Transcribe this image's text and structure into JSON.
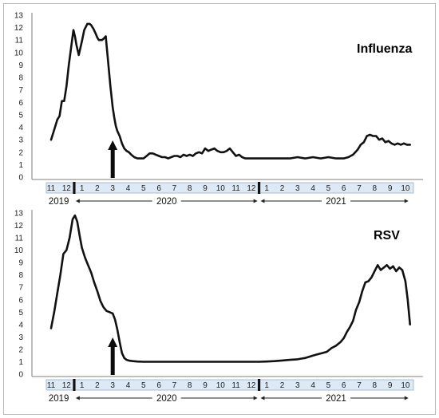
{
  "chart_data": [
    {
      "type": "line",
      "title": "Influenza",
      "xlabel": "",
      "ylabel": "",
      "ylim": [
        0,
        13
      ],
      "yticks": [
        0,
        1,
        2,
        3,
        4,
        5,
        6,
        7,
        8,
        9,
        10,
        11,
        12,
        13
      ],
      "month_ticks": [
        {
          "label": "11",
          "m": 0
        },
        {
          "label": "12",
          "m": 1
        },
        {
          "label": "1",
          "m": 2
        },
        {
          "label": "2",
          "m": 3
        },
        {
          "label": "3",
          "m": 4
        },
        {
          "label": "4",
          "m": 5
        },
        {
          "label": "5",
          "m": 6
        },
        {
          "label": "6",
          "m": 7
        },
        {
          "label": "7",
          "m": 8
        },
        {
          "label": "8",
          "m": 9
        },
        {
          "label": "9",
          "m": 10
        },
        {
          "label": "10",
          "m": 11
        },
        {
          "label": "11",
          "m": 12
        },
        {
          "label": "12",
          "m": 13
        },
        {
          "label": "1",
          "m": 14
        },
        {
          "label": "2",
          "m": 15
        },
        {
          "label": "3",
          "m": 16
        },
        {
          "label": "4",
          "m": 17
        },
        {
          "label": "5",
          "m": 18
        },
        {
          "label": "6",
          "m": 19
        },
        {
          "label": "7",
          "m": 20
        },
        {
          "label": "8",
          "m": 21
        },
        {
          "label": "9",
          "m": 22
        },
        {
          "label": "10",
          "m": 23
        }
      ],
      "year_labels": [
        {
          "label": "2019",
          "m": 0.5
        },
        {
          "label": "2020",
          "m": 7.5
        },
        {
          "label": "2021",
          "m": 18.5
        }
      ],
      "year_ranges": [
        {
          "year": "2020",
          "from": 1.6,
          "to": 13.4
        },
        {
          "year": "2021",
          "from": 13.6,
          "to": 23.2
        }
      ],
      "arrow_month": 4,
      "series": [
        {
          "x": [
            0,
            0.2,
            0.4,
            0.55,
            0.7,
            0.85,
            1.0,
            1.15,
            1.3,
            1.45,
            1.55,
            1.65,
            1.8,
            2.0,
            2.15,
            2.35,
            2.5,
            2.6,
            2.75,
            2.9,
            3.0,
            3.1,
            3.2,
            3.3,
            3.4,
            3.55,
            3.7,
            3.85,
            4.0,
            4.1,
            4.2,
            4.3,
            4.45,
            4.6,
            4.75,
            4.9,
            5.05,
            5.2,
            5.4,
            5.6,
            5.8,
            6.0,
            6.2,
            6.4,
            6.6,
            6.8,
            7.0,
            7.2,
            7.4,
            7.6,
            7.8,
            8.0,
            8.2,
            8.4,
            8.6,
            8.8,
            9.0,
            9.2,
            9.4,
            9.6,
            9.8,
            10.0,
            10.2,
            10.4,
            10.6,
            10.8,
            11.0,
            11.2,
            11.4,
            11.6,
            11.8,
            12.0,
            12.2,
            12.4,
            12.6,
            12.8,
            13.0,
            13.2,
            13.4,
            13.6,
            13.8,
            14.0,
            14.3,
            14.6,
            15.0,
            15.5,
            16.0,
            16.5,
            17.0,
            17.5,
            18.0,
            18.5,
            19.0,
            19.3,
            19.6,
            19.9,
            20.1,
            20.3,
            20.5,
            20.7,
            20.9,
            21.1,
            21.3,
            21.5,
            21.7,
            21.9,
            22.1,
            22.3,
            22.5,
            22.7,
            22.9,
            23.1,
            23.3
          ],
          "y": [
            3.0,
            3.8,
            4.6,
            4.9,
            6.1,
            6.1,
            7.3,
            9.0,
            10.4,
            11.8,
            11.3,
            10.6,
            9.8,
            10.9,
            11.8,
            12.3,
            12.3,
            12.2,
            11.9,
            11.5,
            11.2,
            11.0,
            11.0,
            11.0,
            11.1,
            11.3,
            9.3,
            7.3,
            5.6,
            4.8,
            4.1,
            3.7,
            3.3,
            2.7,
            2.3,
            2.1,
            2.0,
            1.8,
            1.6,
            1.5,
            1.5,
            1.5,
            1.7,
            1.9,
            1.9,
            1.8,
            1.7,
            1.6,
            1.6,
            1.5,
            1.6,
            1.7,
            1.7,
            1.6,
            1.8,
            1.7,
            1.8,
            1.7,
            1.9,
            2.0,
            1.9,
            2.3,
            2.1,
            2.2,
            2.3,
            2.1,
            2.0,
            2.0,
            2.1,
            2.3,
            2.0,
            1.7,
            1.8,
            1.6,
            1.5,
            1.5,
            1.5,
            1.5,
            1.5,
            1.5,
            1.5,
            1.5,
            1.5,
            1.5,
            1.5,
            1.5,
            1.6,
            1.5,
            1.6,
            1.5,
            1.6,
            1.5,
            1.5,
            1.6,
            1.8,
            2.2,
            2.6,
            2.8,
            3.3,
            3.4,
            3.3,
            3.3,
            3.0,
            3.1,
            2.8,
            2.9,
            2.7,
            2.6,
            2.7,
            2.6,
            2.7,
            2.6,
            2.6
          ]
        }
      ]
    },
    {
      "type": "line",
      "title": "RSV",
      "xlabel": "",
      "ylabel": "",
      "ylim": [
        0,
        13
      ],
      "yticks": [
        0,
        1,
        2,
        3,
        4,
        5,
        6,
        7,
        8,
        9,
        10,
        11,
        12,
        13
      ],
      "month_ticks": [
        {
          "label": "11",
          "m": 0
        },
        {
          "label": "12",
          "m": 1
        },
        {
          "label": "1",
          "m": 2
        },
        {
          "label": "2",
          "m": 3
        },
        {
          "label": "3",
          "m": 4
        },
        {
          "label": "4",
          "m": 5
        },
        {
          "label": "5",
          "m": 6
        },
        {
          "label": "6",
          "m": 7
        },
        {
          "label": "7",
          "m": 8
        },
        {
          "label": "8",
          "m": 9
        },
        {
          "label": "9",
          "m": 10
        },
        {
          "label": "10",
          "m": 11
        },
        {
          "label": "11",
          "m": 12
        },
        {
          "label": "12",
          "m": 13
        },
        {
          "label": "1",
          "m": 14
        },
        {
          "label": "2",
          "m": 15
        },
        {
          "label": "3",
          "m": 16
        },
        {
          "label": "4",
          "m": 17
        },
        {
          "label": "5",
          "m": 18
        },
        {
          "label": "6",
          "m": 19
        },
        {
          "label": "7",
          "m": 20
        },
        {
          "label": "8",
          "m": 21
        },
        {
          "label": "9",
          "m": 22
        },
        {
          "label": "10",
          "m": 23
        }
      ],
      "year_labels": [
        {
          "label": "2019",
          "m": 0.5
        },
        {
          "label": "2020",
          "m": 7.5
        },
        {
          "label": "2021",
          "m": 18.5
        }
      ],
      "year_ranges": [
        {
          "year": "2020",
          "from": 1.6,
          "to": 13.4
        },
        {
          "year": "2021",
          "from": 13.6,
          "to": 23.2
        }
      ],
      "arrow_month": 4,
      "series": [
        {
          "x": [
            0,
            0.2,
            0.4,
            0.6,
            0.8,
            1.0,
            1.2,
            1.4,
            1.55,
            1.7,
            1.85,
            2.0,
            2.2,
            2.4,
            2.6,
            2.8,
            3.0,
            3.2,
            3.4,
            3.6,
            3.8,
            4.0,
            4.15,
            4.3,
            4.45,
            4.6,
            4.75,
            4.9,
            5.1,
            5.3,
            5.6,
            6.0,
            6.5,
            7.0,
            7.5,
            8.0,
            8.5,
            9.0,
            9.5,
            10.0,
            10.5,
            11.0,
            11.5,
            12.0,
            12.5,
            13.0,
            13.5,
            14.0,
            14.5,
            15.0,
            15.5,
            16.0,
            16.5,
            17.0,
            17.3,
            17.6,
            17.9,
            18.2,
            18.5,
            18.8,
            19.0,
            19.2,
            19.4,
            19.6,
            19.8,
            20.0,
            20.2,
            20.4,
            20.6,
            20.8,
            21.0,
            21.2,
            21.4,
            21.6,
            21.8,
            22.0,
            22.2,
            22.4,
            22.6,
            22.8,
            23.0,
            23.15,
            23.3
          ],
          "y": [
            3.7,
            5.0,
            6.5,
            8.0,
            9.7,
            10.0,
            11.0,
            12.5,
            12.8,
            12.3,
            11.2,
            10.2,
            9.4,
            8.8,
            8.2,
            7.4,
            6.7,
            5.9,
            5.4,
            5.1,
            5.0,
            4.9,
            4.4,
            3.6,
            2.6,
            1.7,
            1.3,
            1.15,
            1.08,
            1.05,
            1.02,
            1.0,
            1.0,
            1.0,
            1.0,
            1.0,
            1.0,
            1.0,
            1.0,
            1.0,
            1.0,
            1.0,
            1.0,
            1.0,
            1.0,
            1.0,
            1.0,
            1.02,
            1.05,
            1.1,
            1.15,
            1.2,
            1.3,
            1.5,
            1.6,
            1.7,
            1.8,
            2.1,
            2.3,
            2.6,
            2.9,
            3.4,
            3.8,
            4.3,
            5.2,
            5.8,
            6.7,
            7.4,
            7.5,
            7.8,
            8.3,
            8.8,
            8.4,
            8.6,
            8.8,
            8.5,
            8.7,
            8.3,
            8.6,
            8.4,
            7.5,
            6.0,
            4.0
          ]
        }
      ]
    }
  ]
}
